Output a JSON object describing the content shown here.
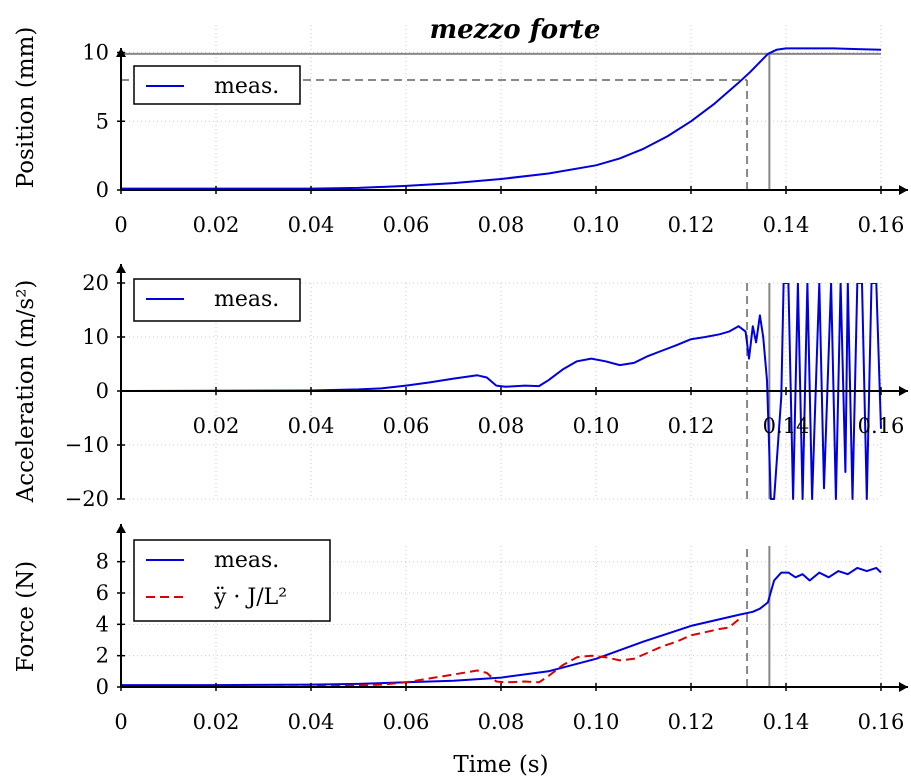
{
  "figure_title": "mezzo forte",
  "chart_data": [
    {
      "type": "line",
      "ylabel": "Position (mm)",
      "xlim": [
        0,
        0.16
      ],
      "ylim": [
        0,
        12
      ],
      "xticks": [
        "0",
        "0.02",
        "0.04",
        "0.06",
        "0.08",
        "0.10",
        "0.12",
        "0.14",
        "0.16"
      ],
      "yticks": [
        "0",
        "5",
        "10"
      ],
      "grid": true,
      "legend": "top-left",
      "series": [
        {
          "name": "meas.",
          "color": "#0000dd",
          "style": "solid",
          "x": [
            0,
            0.02,
            0.04,
            0.05,
            0.06,
            0.07,
            0.08,
            0.09,
            0.1,
            0.105,
            0.11,
            0.115,
            0.12,
            0.125,
            0.13,
            0.1325,
            0.1345,
            0.1362,
            0.138,
            0.14,
            0.145,
            0.15,
            0.155,
            0.16
          ],
          "y": [
            0.1,
            0.1,
            0.1,
            0.15,
            0.3,
            0.5,
            0.8,
            1.2,
            1.8,
            2.3,
            3.0,
            3.9,
            5.0,
            6.3,
            7.8,
            8.6,
            9.3,
            9.9,
            10.2,
            10.3,
            10.3,
            10.3,
            10.25,
            10.2
          ]
        }
      ],
      "reference_lines": [
        {
          "kind": "horizontal",
          "y": 9.9,
          "x_from": 0,
          "x_to": 0.16,
          "color": "#888888",
          "style": "solid"
        },
        {
          "kind": "horizontal",
          "y": 8.0,
          "x_from": 0,
          "x_to": 0.1318,
          "color": "#888888",
          "style": "dashed"
        },
        {
          "kind": "vertical",
          "x": 0.1318,
          "y_from": 0,
          "y_to": 8.0,
          "color": "#888888",
          "style": "dashed"
        },
        {
          "kind": "vertical",
          "x": 0.1365,
          "y_from": 0,
          "y_to": 9.9,
          "color": "#888888",
          "style": "solid"
        }
      ]
    },
    {
      "type": "line",
      "ylabel": "Acceleration (m/s²)",
      "xlim": [
        0,
        0.16
      ],
      "ylim": [
        -20,
        20
      ],
      "xticks": [
        "0.02",
        "0.04",
        "0.06",
        "0.08",
        "0.10",
        "0.12",
        "0.14",
        "0.16"
      ],
      "yticks": [
        "−20",
        "−10",
        "0",
        "10",
        "20"
      ],
      "grid": true,
      "legend": "top-left",
      "series": [
        {
          "name": "meas.",
          "color": "#0000dd",
          "style": "solid",
          "x": [
            0,
            0.04,
            0.05,
            0.055,
            0.06,
            0.065,
            0.07,
            0.075,
            0.077,
            0.079,
            0.081,
            0.085,
            0.088,
            0.09,
            0.093,
            0.096,
            0.099,
            0.102,
            0.105,
            0.108,
            0.111,
            0.114,
            0.117,
            0.12,
            0.123,
            0.126,
            0.128,
            0.13,
            0.1315,
            0.1322,
            0.133,
            0.1337,
            0.1345,
            0.1352,
            0.136,
            0.1368,
            0.1375,
            0.139,
            0.1395,
            0.1405,
            0.1415,
            0.1425,
            0.1435,
            0.1445,
            0.1455,
            0.147,
            0.148,
            0.1495,
            0.1505,
            0.1515,
            0.1525,
            0.153,
            0.154,
            0.155,
            0.156,
            0.157,
            0.158,
            0.159,
            0.16
          ],
          "y": [
            0,
            0.1,
            0.3,
            0.5,
            1.0,
            1.6,
            2.3,
            2.9,
            2.5,
            1.0,
            0.8,
            1.0,
            0.9,
            2.0,
            4.0,
            5.5,
            6.0,
            5.5,
            4.8,
            5.2,
            6.5,
            7.5,
            8.5,
            9.6,
            10.0,
            10.5,
            11.0,
            12.0,
            11.0,
            6.0,
            12.0,
            9.0,
            14.0,
            10.0,
            2.0,
            -20,
            -20,
            -1.0,
            20,
            20,
            -20,
            20,
            -20,
            20,
            -20,
            20,
            -18,
            20,
            -20,
            20,
            -15,
            20,
            -20,
            20,
            20,
            -20,
            20,
            20,
            -7
          ]
        }
      ],
      "reference_lines": [
        {
          "kind": "vertical",
          "x": 0.1318,
          "y_from": -20,
          "y_to": 20,
          "color": "#888888",
          "style": "dashed"
        },
        {
          "kind": "vertical",
          "x": 0.1365,
          "y_from": -20,
          "y_to": 20,
          "color": "#888888",
          "style": "solid"
        }
      ]
    },
    {
      "type": "line",
      "ylabel": "Force (N)",
      "xlabel": "Time (s)",
      "xlim": [
        0,
        0.16
      ],
      "ylim": [
        0,
        9
      ],
      "xticks": [
        "0",
        "0.02",
        "0.04",
        "0.06",
        "0.08",
        "0.10",
        "0.12",
        "0.14",
        "0.16"
      ],
      "yticks": [
        "0",
        "2",
        "4",
        "6",
        "8"
      ],
      "grid": true,
      "legend": "top-left",
      "series": [
        {
          "name": "meas.",
          "color": "#0000dd",
          "style": "solid",
          "x": [
            0,
            0.02,
            0.04,
            0.05,
            0.06,
            0.07,
            0.08,
            0.09,
            0.1,
            0.11,
            0.12,
            0.13,
            0.133,
            0.1345,
            0.1362,
            0.1375,
            0.139,
            0.1405,
            0.142,
            0.1435,
            0.145,
            0.147,
            0.149,
            0.151,
            0.153,
            0.155,
            0.157,
            0.159,
            0.16
          ],
          "y": [
            0.12,
            0.12,
            0.15,
            0.2,
            0.3,
            0.4,
            0.6,
            1.0,
            1.8,
            2.9,
            3.9,
            4.6,
            4.8,
            5.0,
            5.4,
            6.8,
            7.3,
            7.3,
            7.0,
            7.2,
            6.8,
            7.3,
            7.0,
            7.4,
            7.2,
            7.6,
            7.4,
            7.6,
            7.3
          ]
        },
        {
          "name": "ÿ · J/L²",
          "color": "#dd0000",
          "style": "dashed",
          "x": [
            0,
            0.04,
            0.05,
            0.055,
            0.06,
            0.065,
            0.07,
            0.075,
            0.077,
            0.079,
            0.081,
            0.085,
            0.088,
            0.09,
            0.093,
            0.096,
            0.099,
            0.102,
            0.105,
            0.108,
            0.111,
            0.114,
            0.117,
            0.12,
            0.123,
            0.126,
            0.128,
            0.13
          ],
          "y": [
            0,
            0.02,
            0.1,
            0.15,
            0.3,
            0.55,
            0.8,
            1.05,
            0.9,
            0.35,
            0.3,
            0.35,
            0.3,
            0.7,
            1.4,
            1.9,
            2.0,
            1.9,
            1.7,
            1.8,
            2.2,
            2.6,
            2.9,
            3.3,
            3.5,
            3.7,
            3.8,
            4.3
          ]
        }
      ],
      "reference_lines": [
        {
          "kind": "vertical",
          "x": 0.1318,
          "y_from": 0,
          "y_to": 9,
          "color": "#888888",
          "style": "dashed"
        },
        {
          "kind": "vertical",
          "x": 0.1365,
          "y_from": 0,
          "y_to": 9,
          "color": "#888888",
          "style": "solid"
        }
      ]
    }
  ]
}
